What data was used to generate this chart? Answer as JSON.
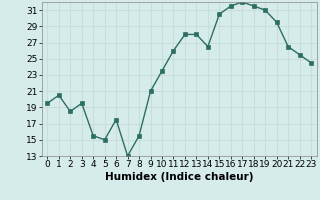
{
  "x": [
    0,
    1,
    2,
    3,
    4,
    5,
    6,
    7,
    8,
    9,
    10,
    11,
    12,
    13,
    14,
    15,
    16,
    17,
    18,
    19,
    20,
    21,
    22,
    23
  ],
  "y": [
    19.5,
    20.5,
    18.5,
    19.5,
    15.5,
    15.0,
    17.5,
    13.0,
    15.5,
    21.0,
    23.5,
    26.0,
    28.0,
    28.0,
    26.5,
    30.5,
    31.5,
    32.0,
    31.5,
    31.0,
    29.5,
    26.5,
    25.5,
    24.5
  ],
  "line_color": "#2d6e63",
  "marker": "s",
  "markersize": 2.5,
  "linewidth": 1.0,
  "xlabel": "Humidex (Indice chaleur)",
  "xlim": [
    -0.5,
    23.5
  ],
  "ylim": [
    13,
    32
  ],
  "yticks": [
    13,
    15,
    17,
    19,
    21,
    23,
    25,
    27,
    29,
    31
  ],
  "xticks": [
    0,
    1,
    2,
    3,
    4,
    5,
    6,
    7,
    8,
    9,
    10,
    11,
    12,
    13,
    14,
    15,
    16,
    17,
    18,
    19,
    20,
    21,
    22,
    23
  ],
  "bg_color": "#d6ecea",
  "grid_color": "#c8dedd",
  "label_fontsize": 6.5,
  "xlabel_fontsize": 7.5
}
